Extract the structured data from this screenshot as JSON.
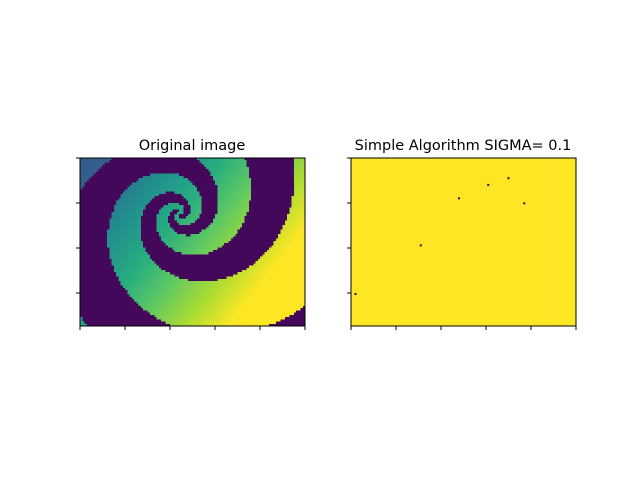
{
  "chart_data": [
    {
      "type": "heatmap",
      "title": "Original image",
      "colormap": "viridis",
      "content": "spiral",
      "xlabel": "",
      "ylabel": "",
      "tick_labels_visible": false,
      "x_tick_count": 6,
      "y_tick_count": 4,
      "grid": false,
      "legend": "none"
    },
    {
      "type": "heatmap",
      "title": "Simple Algorithm SIGMA= 0.1",
      "colormap": "viridis",
      "background_value": "max",
      "xlabel": "",
      "ylabel": "",
      "tick_labels_visible": false,
      "x_tick_count": 6,
      "y_tick_count": 4,
      "grid": false,
      "legend": "none",
      "outlier_points": [
        {
          "x": 0.48,
          "y": 0.24
        },
        {
          "x": 0.61,
          "y": 0.16
        },
        {
          "x": 0.7,
          "y": 0.12
        },
        {
          "x": 0.77,
          "y": 0.27
        },
        {
          "x": 0.31,
          "y": 0.52
        },
        {
          "x": 0.02,
          "y": 0.81
        }
      ]
    }
  ],
  "colors": {
    "viridis_low": "#440154",
    "viridis_high": "#fde725",
    "frame": "#000000"
  }
}
